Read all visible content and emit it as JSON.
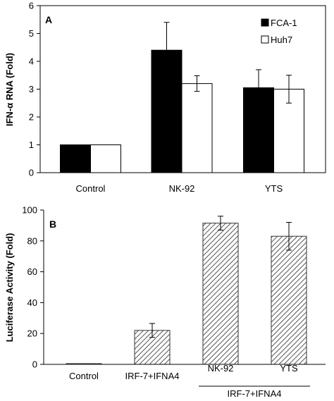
{
  "chart_data": [
    {
      "type": "bar",
      "panel_label": "A",
      "ylabel": "IFN-α RNA (Fold)",
      "ylim": [
        0,
        6
      ],
      "yticks": [
        "0",
        "1",
        "2",
        "3",
        "4",
        "5",
        "6"
      ],
      "categories": [
        "Control",
        "NK-92",
        "YTS"
      ],
      "legend_placement": "top-right",
      "series": [
        {
          "name": "FCA-1",
          "color": "#000000",
          "values": [
            1.0,
            4.4,
            3.05
          ],
          "errors": [
            0,
            1.0,
            0.65
          ]
        },
        {
          "name": "Huh7",
          "color": "#ffffff",
          "values": [
            1.0,
            3.2,
            3.0
          ],
          "errors": [
            0,
            0.28,
            0.5
          ]
        }
      ]
    },
    {
      "type": "bar",
      "panel_label": "B",
      "ylabel": "Luciferase Activity (Fold)",
      "ylim": [
        0,
        100
      ],
      "yticks": [
        "0",
        "20",
        "40",
        "60",
        "80",
        "100"
      ],
      "categories": [
        "Control",
        "IRF-7+IFNA4",
        "NK-92",
        "YTS"
      ],
      "group_label": "IRF-7+IFNA4",
      "bar_fill": "hatched",
      "series": [
        {
          "values": [
            0.5,
            22,
            91.5,
            83
          ],
          "errors": [
            0,
            4.5,
            4.5,
            9
          ]
        }
      ]
    }
  ]
}
